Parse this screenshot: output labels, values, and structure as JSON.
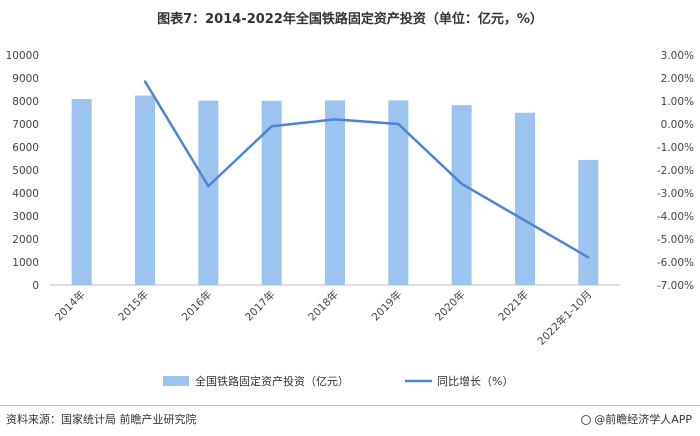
{
  "chart_data": {
    "type": "bar",
    "title": "图表7：2014-2022年全国铁路固定资产投资（单位：亿元，%）",
    "categories": [
      "2014年",
      "2015年",
      "2016年",
      "2017年",
      "2018年",
      "2019年",
      "2020年",
      "2021年",
      "2022年1-10月"
    ],
    "series": [
      {
        "name": "全国铁路固定资产投资（亿元）",
        "type": "bar",
        "axis": "left",
        "values": [
          8088,
          8238,
          8015,
          8010,
          8028,
          8029,
          7819,
          7489,
          5439
        ]
      },
      {
        "name": "同比增长（%）",
        "type": "line",
        "axis": "right",
        "values": [
          null,
          1.85,
          -2.7,
          -0.1,
          0.2,
          0.0,
          -2.6,
          -4.2,
          -5.8
        ]
      }
    ],
    "left_axis": {
      "ylim": [
        0,
        10000
      ],
      "ticks": [
        "0",
        "1000",
        "2000",
        "3000",
        "4000",
        "5000",
        "6000",
        "7000",
        "8000",
        "9000",
        "10000"
      ]
    },
    "right_axis": {
      "ylim": [
        -7,
        3
      ],
      "ticks": [
        "3.00%",
        "2.00%",
        "1.00%",
        "0.00%",
        "-1.00%",
        "-2.00%",
        "-3.00%",
        "-4.00%",
        "-5.00%",
        "-6.00%",
        "-7.00%"
      ]
    },
    "legend": {
      "position": "bottom"
    },
    "colors": {
      "bar": "#9dc3ef",
      "line": "#4a86d4",
      "axis": "#bfbfbf"
    }
  },
  "footer": {
    "source": "资料来源：国家统计局 前瞻产业研究院",
    "brand": "@前瞻经济学人APP"
  }
}
